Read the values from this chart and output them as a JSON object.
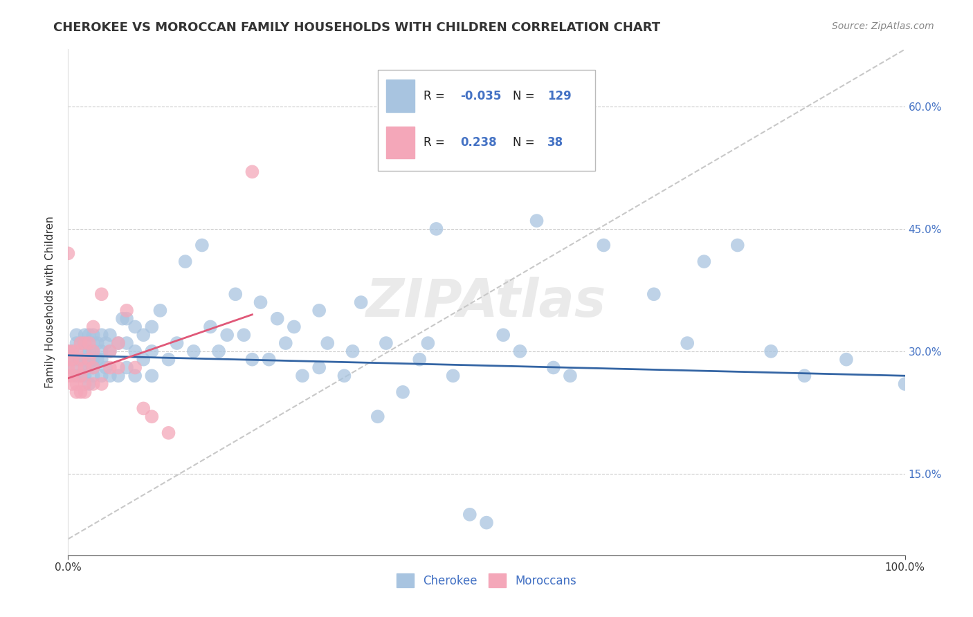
{
  "title": "CHEROKEE VS MOROCCAN FAMILY HOUSEHOLDS WITH CHILDREN CORRELATION CHART",
  "source": "Source: ZipAtlas.com",
  "ylabel": "Family Households with Children",
  "xlim": [
    0.0,
    1.0
  ],
  "ylim": [
    0.05,
    0.67
  ],
  "yticks": [
    0.15,
    0.3,
    0.45,
    0.6
  ],
  "ytick_labels": [
    "15.0%",
    "30.0%",
    "45.0%",
    "60.0%"
  ],
  "legend_r_cherokee": "-0.035",
  "legend_n_cherokee": "129",
  "legend_r_moroccan": "0.238",
  "legend_n_moroccan": "38",
  "cherokee_color": "#a8c4e0",
  "moroccan_color": "#f4a7b9",
  "cherokee_line_color": "#3465a4",
  "moroccan_line_color": "#e05878",
  "diagonal_color": "#c8c8c8",
  "watermark": "ZIPAtlas",
  "background_color": "#ffffff",
  "title_fontsize": 13,
  "cherokee_x": [
    0.0,
    0.0,
    0.005,
    0.005,
    0.01,
    0.01,
    0.01,
    0.01,
    0.015,
    0.015,
    0.015,
    0.02,
    0.02,
    0.02,
    0.02,
    0.02,
    0.02,
    0.025,
    0.025,
    0.025,
    0.025,
    0.025,
    0.03,
    0.03,
    0.03,
    0.03,
    0.03,
    0.03,
    0.035,
    0.035,
    0.04,
    0.04,
    0.04,
    0.04,
    0.045,
    0.045,
    0.05,
    0.05,
    0.05,
    0.06,
    0.06,
    0.065,
    0.07,
    0.07,
    0.07,
    0.08,
    0.08,
    0.08,
    0.09,
    0.09,
    0.1,
    0.1,
    0.1,
    0.11,
    0.12,
    0.13,
    0.14,
    0.15,
    0.16,
    0.17,
    0.18,
    0.19,
    0.2,
    0.21,
    0.22,
    0.23,
    0.24,
    0.25,
    0.26,
    0.27,
    0.28,
    0.3,
    0.3,
    0.31,
    0.33,
    0.34,
    0.35,
    0.37,
    0.38,
    0.4,
    0.42,
    0.43,
    0.44,
    0.46,
    0.48,
    0.5,
    0.52,
    0.54,
    0.56,
    0.58,
    0.6,
    0.64,
    0.7,
    0.74,
    0.76,
    0.8,
    0.84,
    0.88,
    0.93,
    1.0
  ],
  "cherokee_y": [
    0.29,
    0.3,
    0.28,
    0.3,
    0.27,
    0.29,
    0.31,
    0.32,
    0.27,
    0.29,
    0.31,
    0.27,
    0.28,
    0.29,
    0.3,
    0.31,
    0.32,
    0.26,
    0.28,
    0.29,
    0.3,
    0.32,
    0.27,
    0.28,
    0.29,
    0.3,
    0.31,
    0.32,
    0.29,
    0.31,
    0.27,
    0.29,
    0.3,
    0.32,
    0.28,
    0.31,
    0.27,
    0.3,
    0.32,
    0.27,
    0.31,
    0.34,
    0.28,
    0.31,
    0.34,
    0.27,
    0.3,
    0.33,
    0.29,
    0.32,
    0.27,
    0.3,
    0.33,
    0.35,
    0.29,
    0.31,
    0.41,
    0.3,
    0.43,
    0.33,
    0.3,
    0.32,
    0.37,
    0.32,
    0.29,
    0.36,
    0.29,
    0.34,
    0.31,
    0.33,
    0.27,
    0.28,
    0.35,
    0.31,
    0.27,
    0.3,
    0.36,
    0.22,
    0.31,
    0.25,
    0.29,
    0.31,
    0.45,
    0.27,
    0.1,
    0.09,
    0.32,
    0.3,
    0.46,
    0.28,
    0.27,
    0.43,
    0.37,
    0.31,
    0.41,
    0.43,
    0.3,
    0.27,
    0.29,
    0.26
  ],
  "moroccan_x": [
    0.0,
    0.0,
    0.0,
    0.0,
    0.0,
    0.005,
    0.005,
    0.005,
    0.005,
    0.01,
    0.01,
    0.01,
    0.01,
    0.015,
    0.015,
    0.015,
    0.015,
    0.02,
    0.02,
    0.02,
    0.02,
    0.025,
    0.025,
    0.03,
    0.03,
    0.03,
    0.03,
    0.04,
    0.04,
    0.05,
    0.05,
    0.06,
    0.06,
    0.07,
    0.08,
    0.09,
    0.1,
    0.12,
    0.22
  ],
  "moroccan_y": [
    0.27,
    0.28,
    0.29,
    0.3,
    0.42,
    0.26,
    0.27,
    0.29,
    0.3,
    0.25,
    0.26,
    0.28,
    0.3,
    0.25,
    0.27,
    0.29,
    0.31,
    0.25,
    0.26,
    0.28,
    0.31,
    0.29,
    0.31,
    0.26,
    0.28,
    0.3,
    0.33,
    0.26,
    0.37,
    0.28,
    0.3,
    0.28,
    0.31,
    0.35,
    0.28,
    0.23,
    0.22,
    0.2,
    0.52
  ],
  "cherokee_line_x": [
    0.0,
    1.0
  ],
  "cherokee_line_y": [
    0.295,
    0.27
  ],
  "moroccan_line_x": [
    0.0,
    0.22
  ],
  "moroccan_line_y": [
    0.267,
    0.345
  ]
}
